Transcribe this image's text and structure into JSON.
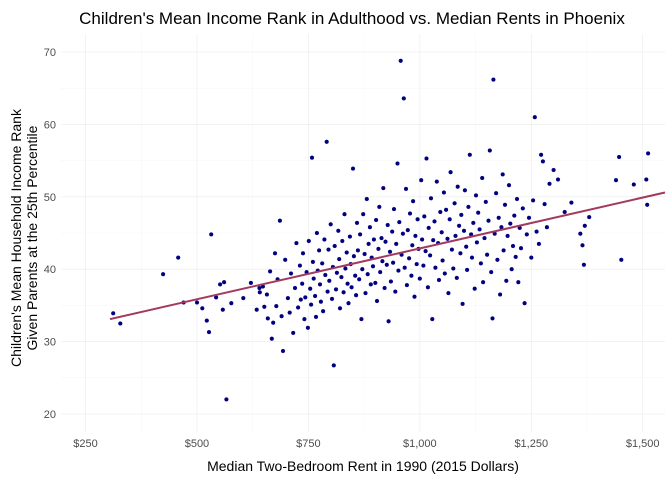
{
  "chart_data": {
    "type": "scatter",
    "title": "Children's Mean Income Rank in Adulthood vs. Median Rents in Phoenix",
    "xlabel": "Median Two-Bedroom Rent in 1990 (2015 Dollars)",
    "ylabel_line1": "Children's Mean Household Income Rank",
    "ylabel_line2": "Given Parents at the 25th Percentile",
    "xlim": [
      195,
      1550
    ],
    "ylim": [
      17.5,
      72.5
    ],
    "x_ticks": [
      250,
      500,
      750,
      1000,
      1250,
      1500
    ],
    "x_tick_labels": [
      "$250",
      "$500",
      "$750",
      "$1,000",
      "$1,250",
      "$1,500"
    ],
    "y_ticks": [
      20,
      30,
      40,
      50,
      60,
      70
    ],
    "y_tick_labels": [
      "20",
      "30",
      "40",
      "50",
      "60",
      "70"
    ],
    "grid": true,
    "point_color": "#000080",
    "trend_color": "#a33a5e",
    "trend_line": {
      "x": [
        305,
        1550
      ],
      "y": [
        33.1,
        50.6
      ]
    },
    "points": [
      [
        312,
        33.9
      ],
      [
        328,
        32.5
      ],
      [
        424,
        39.3
      ],
      [
        458,
        41.6
      ],
      [
        470,
        35.4
      ],
      [
        500,
        35.4
      ],
      [
        512,
        34.6
      ],
      [
        522,
        32.9
      ],
      [
        527,
        31.3
      ],
      [
        532,
        44.8
      ],
      [
        543,
        36.1
      ],
      [
        552,
        37.9
      ],
      [
        558,
        34.4
      ],
      [
        561,
        38.2
      ],
      [
        566,
        22.0
      ],
      [
        577,
        35.3
      ],
      [
        604,
        36.0
      ],
      [
        621,
        38.1
      ],
      [
        634,
        34.4
      ],
      [
        640,
        37.4
      ],
      [
        641,
        36.8
      ],
      [
        648,
        37.6
      ],
      [
        651,
        34.8
      ],
      [
        657,
        36.5
      ],
      [
        659,
        33.2
      ],
      [
        664,
        39.7
      ],
      [
        668,
        30.4
      ],
      [
        671,
        32.6
      ],
      [
        675,
        42.2
      ],
      [
        678,
        34.9
      ],
      [
        681,
        38.6
      ],
      [
        686,
        46.7
      ],
      [
        690,
        33.5
      ],
      [
        693,
        28.7
      ],
      [
        698,
        41.3
      ],
      [
        704,
        36.0
      ],
      [
        708,
        34.0
      ],
      [
        711,
        39.4
      ],
      [
        716,
        31.2
      ],
      [
        720,
        37.4
      ],
      [
        723,
        43.6
      ],
      [
        727,
        34.7
      ],
      [
        731,
        40.5
      ],
      [
        733,
        35.8
      ],
      [
        736,
        38.0
      ],
      [
        738,
        42.2
      ],
      [
        741,
        33.1
      ],
      [
        743,
        36.1
      ],
      [
        746,
        39.6
      ],
      [
        749,
        31.9
      ],
      [
        751,
        43.9
      ],
      [
        754,
        37.3
      ],
      [
        756,
        35.1
      ],
      [
        758,
        55.4
      ],
      [
        760,
        41.0
      ],
      [
        762,
        38.7
      ],
      [
        765,
        36.3
      ],
      [
        767,
        33.4
      ],
      [
        769,
        45.0
      ],
      [
        771,
        39.8
      ],
      [
        774,
        42.6
      ],
      [
        776,
        37.9
      ],
      [
        778,
        35.5
      ],
      [
        781,
        40.8
      ],
      [
        783,
        34.2
      ],
      [
        786,
        44.1
      ],
      [
        788,
        39.2
      ],
      [
        791,
        57.6
      ],
      [
        793,
        36.9
      ],
      [
        795,
        42.7
      ],
      [
        797,
        38.4
      ],
      [
        800,
        46.2
      ],
      [
        803,
        35.9
      ],
      [
        805,
        40.3
      ],
      [
        807,
        26.7
      ],
      [
        809,
        43.2
      ],
      [
        812,
        37.2
      ],
      [
        814,
        39.5
      ],
      [
        817,
        45.3
      ],
      [
        819,
        41.4
      ],
      [
        821,
        34.6
      ],
      [
        824,
        38.9
      ],
      [
        826,
        43.9
      ],
      [
        829,
        36.8
      ],
      [
        831,
        47.6
      ],
      [
        833,
        40.1
      ],
      [
        836,
        42.3
      ],
      [
        838,
        38.0
      ],
      [
        840,
        35.3
      ],
      [
        843,
        44.5
      ],
      [
        845,
        40.7
      ],
      [
        847,
        37.5
      ],
      [
        850,
        53.9
      ],
      [
        852,
        41.8
      ],
      [
        855,
        39.1
      ],
      [
        857,
        36.4
      ],
      [
        859,
        46.4
      ],
      [
        861,
        42.6
      ],
      [
        864,
        38.6
      ],
      [
        866,
        44.8
      ],
      [
        869,
        33.1
      ],
      [
        871,
        40.0
      ],
      [
        873,
        47.6
      ],
      [
        876,
        42.1
      ],
      [
        878,
        36.7
      ],
      [
        881,
        49.7
      ],
      [
        883,
        39.3
      ],
      [
        885,
        43.5
      ],
      [
        888,
        45.8
      ],
      [
        890,
        37.9
      ],
      [
        892,
        41.6
      ],
      [
        895,
        40.4
      ],
      [
        897,
        44.1
      ],
      [
        900,
        38.1
      ],
      [
        902,
        46.8
      ],
      [
        904,
        35.6
      ],
      [
        907,
        42.8
      ],
      [
        909,
        48.6
      ],
      [
        911,
        39.6
      ],
      [
        914,
        44.3
      ],
      [
        916,
        41.1
      ],
      [
        918,
        51.2
      ],
      [
        921,
        37.4
      ],
      [
        923,
        43.8
      ],
      [
        926,
        40.6
      ],
      [
        928,
        46.1
      ],
      [
        930,
        32.8
      ],
      [
        933,
        42.4
      ],
      [
        935,
        38.3
      ],
      [
        938,
        45.2
      ],
      [
        940,
        40.9
      ],
      [
        942,
        48.3
      ],
      [
        945,
        36.9
      ],
      [
        947,
        43.5
      ],
      [
        950,
        54.6
      ],
      [
        952,
        39.8
      ],
      [
        954,
        46.5
      ],
      [
        957,
        68.8
      ],
      [
        959,
        42.0
      ],
      [
        962,
        44.9
      ],
      [
        964,
        63.6
      ],
      [
        966,
        40.2
      ],
      [
        969,
        51.1
      ],
      [
        971,
        37.8
      ],
      [
        973,
        45.4
      ],
      [
        976,
        41.5
      ],
      [
        978,
        47.7
      ],
      [
        981,
        39.1
      ],
      [
        983,
        43.3
      ],
      [
        985,
        49.4
      ],
      [
        988,
        36.2
      ],
      [
        990,
        44.6
      ],
      [
        993,
        40.7
      ],
      [
        995,
        46.9
      ],
      [
        997,
        42.8
      ],
      [
        1000,
        38.7
      ],
      [
        1003,
        52.3
      ],
      [
        1005,
        44.1
      ],
      [
        1008,
        40.5
      ],
      [
        1010,
        47.3
      ],
      [
        1013,
        42.5
      ],
      [
        1015,
        55.3
      ],
      [
        1018,
        37.5
      ],
      [
        1020,
        45.7
      ],
      [
        1023,
        41.9
      ],
      [
        1025,
        49.8
      ],
      [
        1028,
        33.1
      ],
      [
        1030,
        44.0
      ],
      [
        1033,
        46.6
      ],
      [
        1035,
        40.2
      ],
      [
        1038,
        52.1
      ],
      [
        1041,
        43.6
      ],
      [
        1043,
        38.5
      ],
      [
        1046,
        47.9
      ],
      [
        1049,
        45.1
      ],
      [
        1051,
        41.2
      ],
      [
        1054,
        50.6
      ],
      [
        1056,
        39.4
      ],
      [
        1059,
        48.2
      ],
      [
        1062,
        44.2
      ],
      [
        1064,
        36.7
      ],
      [
        1067,
        46.9
      ],
      [
        1069,
        53.4
      ],
      [
        1072,
        42.7
      ],
      [
        1075,
        40.1
      ],
      [
        1078,
        49.1
      ],
      [
        1080,
        44.6
      ],
      [
        1083,
        38.8
      ],
      [
        1085,
        51.4
      ],
      [
        1088,
        46.0
      ],
      [
        1091,
        42.2
      ],
      [
        1093,
        47.5
      ],
      [
        1096,
        35.2
      ],
      [
        1099,
        45.3
      ],
      [
        1101,
        50.9
      ],
      [
        1104,
        43.1
      ],
      [
        1106,
        39.9
      ],
      [
        1109,
        48.6
      ],
      [
        1112,
        55.8
      ],
      [
        1115,
        44.8
      ],
      [
        1117,
        41.6
      ],
      [
        1120,
        46.4
      ],
      [
        1123,
        37.3
      ],
      [
        1126,
        50.2
      ],
      [
        1128,
        43.7
      ],
      [
        1131,
        47.8
      ],
      [
        1134,
        45.5
      ],
      [
        1137,
        40.8
      ],
      [
        1140,
        52.6
      ],
      [
        1142,
        38.2
      ],
      [
        1145,
        44.3
      ],
      [
        1148,
        49.3
      ],
      [
        1151,
        42.0
      ],
      [
        1154,
        46.7
      ],
      [
        1157,
        56.4
      ],
      [
        1160,
        39.6
      ],
      [
        1163,
        33.2
      ],
      [
        1165,
        66.2
      ],
      [
        1168,
        44.9
      ],
      [
        1171,
        50.5
      ],
      [
        1174,
        41.3
      ],
      [
        1177,
        47.1
      ],
      [
        1180,
        36.5
      ],
      [
        1183,
        45.8
      ],
      [
        1186,
        53.1
      ],
      [
        1188,
        42.6
      ],
      [
        1191,
        48.9
      ],
      [
        1194,
        38.4
      ],
      [
        1197,
        44.6
      ],
      [
        1200,
        51.6
      ],
      [
        1203,
        46.3
      ],
      [
        1206,
        40.0
      ],
      [
        1209,
        43.2
      ],
      [
        1212,
        47.4
      ],
      [
        1215,
        41.7
      ],
      [
        1218,
        49.7
      ],
      [
        1221,
        38.2
      ],
      [
        1224,
        45.7
      ],
      [
        1227,
        42.9
      ],
      [
        1231,
        48.4
      ],
      [
        1235,
        35.3
      ],
      [
        1240,
        44.8
      ],
      [
        1245,
        47.1
      ],
      [
        1250,
        41.6
      ],
      [
        1254,
        49.5
      ],
      [
        1258,
        61.0
      ],
      [
        1262,
        45.2
      ],
      [
        1267,
        43.5
      ],
      [
        1272,
        55.8
      ],
      [
        1276,
        54.9
      ],
      [
        1280,
        49.0
      ],
      [
        1285,
        45.8
      ],
      [
        1291,
        51.8
      ],
      [
        1300,
        53.7
      ],
      [
        1310,
        52.4
      ],
      [
        1325,
        47.9
      ],
      [
        1340,
        49.2
      ],
      [
        1360,
        44.9
      ],
      [
        1365,
        43.3
      ],
      [
        1368,
        40.6
      ],
      [
        1370,
        46.0
      ],
      [
        1380,
        47.2
      ],
      [
        1440,
        52.3
      ],
      [
        1447,
        55.5
      ],
      [
        1452,
        41.3
      ],
      [
        1480,
        51.7
      ],
      [
        1508,
        52.4
      ],
      [
        1510,
        48.9
      ],
      [
        1512,
        56.0
      ]
    ]
  }
}
